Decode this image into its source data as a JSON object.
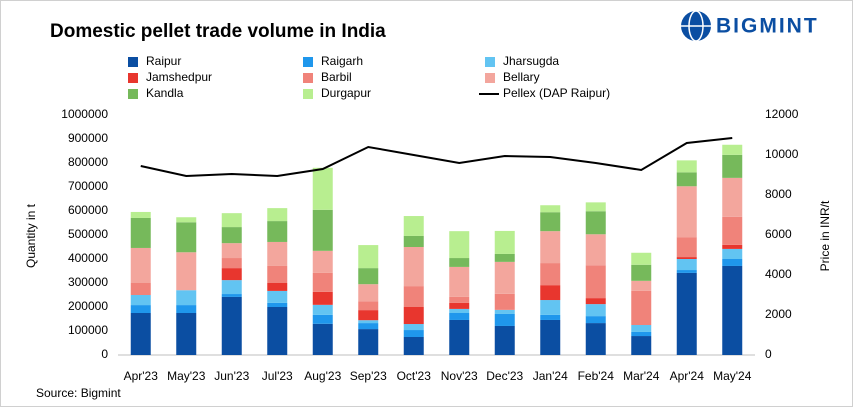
{
  "logo": "BIGMINT",
  "chart_data": {
    "type": "bar",
    "stacked": true,
    "title": "Domestic pellet trade volume in India",
    "ylabel": "Quantity in t",
    "y2label": "Price in INR/t",
    "source": "Source: Bigmint",
    "categories": [
      "Apr'23",
      "May'23",
      "Jun'23",
      "Jul'23",
      "Aug'23",
      "Sep'23",
      "Oct'23",
      "Nov'23",
      "Dec'23",
      "Jan'24",
      "Feb'24",
      "Mar'24",
      "Apr'24",
      "May'24"
    ],
    "ylim": [
      0,
      1000000
    ],
    "yticks": [
      0,
      100000,
      200000,
      300000,
      400000,
      500000,
      600000,
      700000,
      800000,
      900000,
      1000000
    ],
    "y2lim": [
      0,
      12000
    ],
    "y2ticks": [
      0,
      2000,
      4000,
      6000,
      8000,
      10000,
      12000
    ],
    "series": [
      {
        "name": "Raipur",
        "color": "#0b4ea2",
        "values": [
          175000,
          175000,
          242000,
          200000,
          130000,
          108000,
          75000,
          146000,
          121000,
          146000,
          133000,
          79000,
          342000,
          371000
        ]
      },
      {
        "name": "Raigarh",
        "color": "#1f97ec",
        "values": [
          33000,
          33000,
          12000,
          17000,
          37000,
          25000,
          29000,
          29000,
          50000,
          21000,
          29000,
          17000,
          12000,
          29000
        ]
      },
      {
        "name": "Jharsugda",
        "color": "#62c4f2",
        "values": [
          42000,
          62000,
          58000,
          50000,
          42000,
          12000,
          25000,
          17000,
          17000,
          62000,
          50000,
          29000,
          46000,
          42000
        ]
      },
      {
        "name": "Jamshedpur",
        "color": "#e8362e",
        "values": [
          0,
          0,
          50000,
          33000,
          54000,
          42000,
          71000,
          25000,
          0,
          62000,
          25000,
          0,
          8000,
          17000
        ]
      },
      {
        "name": "Barbil",
        "color": "#f0837a",
        "values": [
          50000,
          0,
          42000,
          71000,
          79000,
          37000,
          87000,
          25000,
          67000,
          92000,
          137000,
          142000,
          83000,
          117000
        ]
      },
      {
        "name": "Bellary",
        "color": "#f3a69d",
        "values": [
          146000,
          158000,
          62000,
          100000,
          92000,
          71000,
          163000,
          125000,
          133000,
          133000,
          129000,
          42000,
          212000,
          162000
        ]
      },
      {
        "name": "Kandla",
        "color": "#76b95b",
        "values": [
          125000,
          125000,
          67000,
          87000,
          171000,
          67000,
          46000,
          37000,
          33000,
          79000,
          96000,
          67000,
          58000,
          96000
        ]
      },
      {
        "name": "Durgapur",
        "color": "#b8ee90",
        "values": [
          25000,
          21000,
          58000,
          54000,
          175000,
          96000,
          83000,
          112000,
          96000,
          29000,
          37000,
          50000,
          50000,
          42000
        ]
      },
      {
        "name": "Pellex (DAP Raipur)",
        "color": "#000000",
        "type": "line",
        "axis": "y2",
        "values": [
          9450,
          8950,
          9050,
          8950,
          9300,
          10400,
          10000,
          9600,
          9950,
          9900,
          9600,
          9250,
          10600,
          10850
        ]
      }
    ]
  }
}
